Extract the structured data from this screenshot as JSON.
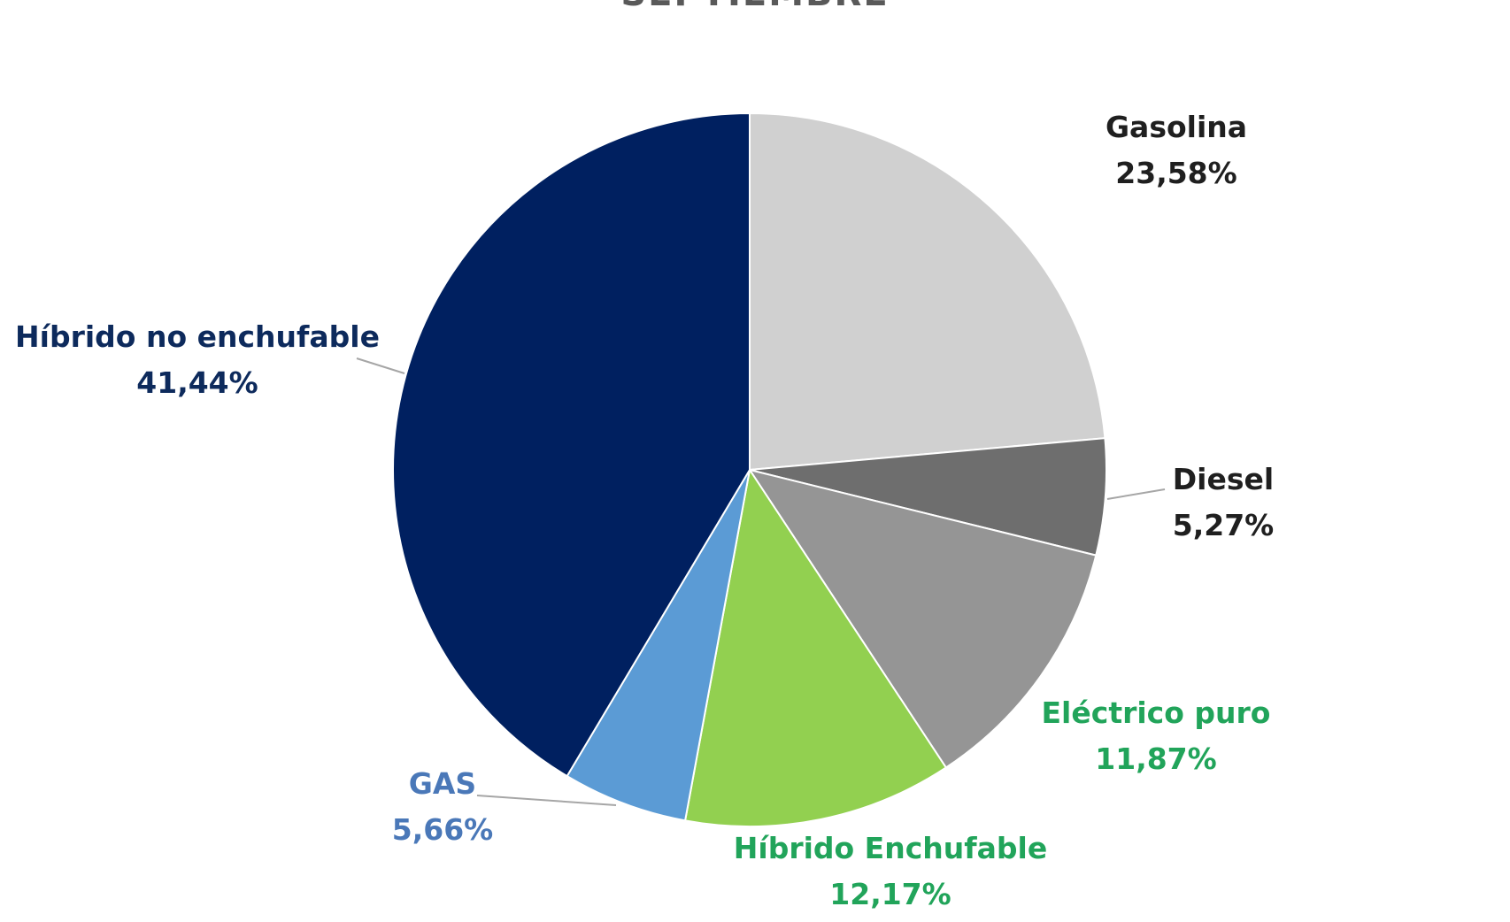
{
  "chart_data": {
    "type": "pie",
    "title": "SEPTIEMBRE",
    "start_angle_deg": 0,
    "direction": "clockwise",
    "slices": [
      {
        "label": "Gasolina",
        "value": 23.58,
        "value_label": "23,58%",
        "color": "#d0d0d0",
        "label_color": "#1f1f1f"
      },
      {
        "label": "Diesel",
        "value": 5.27,
        "value_label": "5,27%",
        "color": "#6e6e6e",
        "label_color": "#1f1f1f"
      },
      {
        "label": "Eléctrico puro",
        "value": 11.87,
        "value_label": "11,87%",
        "color": "#959595",
        "label_color": "#21a45a"
      },
      {
        "label": "Híbrido Enchufable",
        "value": 12.17,
        "value_label": "12,17%",
        "color": "#92d050",
        "label_color": "#21a45a"
      },
      {
        "label": "GAS",
        "value": 5.66,
        "value_label": "5,66%",
        "color": "#5b9bd5",
        "label_color": "#4a78b8"
      },
      {
        "label": "Híbrido no enchufable",
        "value": 41.44,
        "value_label": "41,44%",
        "color": "#002060",
        "label_color": "#0d2a5c"
      }
    ]
  }
}
